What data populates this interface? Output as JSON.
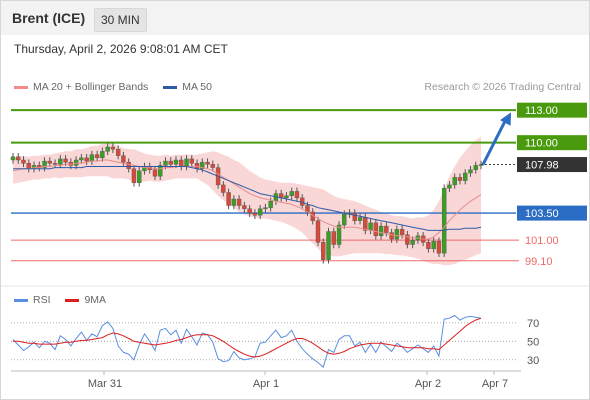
{
  "header": {
    "instrument": "Brent (ICE)",
    "timeframe": "30 MIN"
  },
  "datetime": "Thursday, April 2, 2026 9:08:01 AM CET",
  "legend": {
    "ma20_bb": "MA 20 + Bollinger Bands",
    "ma50": "MA 50",
    "rsi": "RSI",
    "rsi_ma": "9MA"
  },
  "copyright": "Research © 2026 Trading Central",
  "colors": {
    "up_level": "#4a9a0e",
    "pivot": "#2b6cc4",
    "down_level": "#ee6a6a",
    "last_price": "#333333",
    "ma50": "#2f5aa8",
    "bb": "#f7c9c9",
    "rsi": "#5b8fe0",
    "rsi_ma": "#dd1f1f",
    "arrow": "#2b6cc4"
  },
  "chart_data": [
    {
      "type": "candlestick",
      "title": "",
      "x_labels": [
        "Mar 31",
        "Apr 1",
        "Apr 2",
        "Apr 7"
      ],
      "ylim": [
        97.6,
        114.4
      ],
      "levels": [
        {
          "value": 113.0,
          "label": "113.00",
          "kind": "resistance"
        },
        {
          "value": 110.0,
          "label": "110.00",
          "kind": "resistance"
        },
        {
          "value": 103.5,
          "label": "103.50",
          "kind": "pivot"
        },
        {
          "value": 101.0,
          "label": "101.00",
          "kind": "support"
        },
        {
          "value": 99.1,
          "label": "99.10",
          "kind": "support"
        }
      ],
      "last_price": {
        "value": 107.98,
        "label": "107.98"
      },
      "close_series": [
        108.7,
        108.4,
        108.1,
        107.6,
        107.9,
        107.7,
        108.3,
        108.1,
        108.0,
        108.5,
        108.2,
        107.9,
        108.4,
        108.6,
        108.3,
        108.9,
        108.6,
        109.2,
        109.6,
        109.4,
        108.8,
        108.2,
        107.6,
        106.3,
        107.4,
        107.8,
        107.5,
        106.9,
        107.9,
        108.3,
        108.0,
        108.4,
        107.8,
        108.5,
        108.1,
        107.6,
        108.2,
        108.0,
        107.7,
        106.1,
        105.4,
        104.2,
        104.8,
        104.2,
        103.9,
        103.5,
        103.3,
        103.9,
        104.0,
        104.6,
        105.3,
        104.9,
        105.1,
        105.5,
        104.9,
        104.2,
        103.6,
        102.8,
        100.8,
        99.2,
        101.8,
        100.6,
        102.4,
        103.4,
        103.5,
        102.8,
        103.1,
        101.9,
        102.6,
        101.4,
        102.3,
        101.7,
        101.1,
        102.0,
        101.5,
        100.6,
        101.0,
        101.4,
        100.8,
        100.2,
        100.9,
        99.8,
        105.8,
        106.1,
        106.8,
        106.5,
        107.2,
        107.5,
        107.9,
        107.98
      ],
      "ma20": [
        107.4,
        107.5,
        107.6,
        107.6,
        107.7,
        107.7,
        107.8,
        107.8,
        107.9,
        107.9,
        108.0,
        108.0,
        108.1,
        108.1,
        108.2,
        108.3,
        108.3,
        108.4,
        108.4,
        108.3,
        108.2,
        108.1,
        108.0,
        107.9,
        107.8,
        107.7,
        107.7,
        107.6,
        107.6,
        107.7,
        107.7,
        107.8,
        107.8,
        107.8,
        107.8,
        107.8,
        107.7,
        107.6,
        107.4,
        107.1,
        106.8,
        106.5,
        106.2,
        105.9,
        105.6,
        105.3,
        105.1,
        104.9,
        104.8,
        104.7,
        104.6,
        104.5,
        104.4,
        104.3,
        104.1,
        103.9,
        103.6,
        103.3,
        103.0,
        102.7,
        102.5,
        102.3,
        102.2,
        102.2,
        102.2,
        102.2,
        102.1,
        102.0,
        101.9,
        101.8,
        101.7,
        101.6,
        101.5,
        101.4,
        101.4,
        101.3,
        101.2,
        101.2,
        101.1,
        101.1,
        101.3,
        101.7,
        102.2,
        102.8,
        103.3,
        103.8,
        104.2,
        104.6,
        104.9,
        105.2
      ],
      "bb_width": [
        1.2,
        1.2,
        1.2,
        1.1,
        1.1,
        1.1,
        1.1,
        1.1,
        1.1,
        1.2,
        1.2,
        1.2,
        1.3,
        1.3,
        1.3,
        1.4,
        1.4,
        1.5,
        1.5,
        1.6,
        1.5,
        1.4,
        1.4,
        1.5,
        1.4,
        1.3,
        1.2,
        1.2,
        1.2,
        1.2,
        1.1,
        1.1,
        1.1,
        1.1,
        1.1,
        1.1,
        1.3,
        1.5,
        1.8,
        2.0,
        2.1,
        2.2,
        2.2,
        2.3,
        2.2,
        2.1,
        2.0,
        1.9,
        1.8,
        1.8,
        1.8,
        1.8,
        1.9,
        2.0,
        2.1,
        2.2,
        2.4,
        2.6,
        2.8,
        3.0,
        2.9,
        2.8,
        2.7,
        2.6,
        2.5,
        2.4,
        2.3,
        2.2,
        2.1,
        2.0,
        1.9,
        1.9,
        1.8,
        1.8,
        1.8,
        1.8,
        1.8,
        1.9,
        2.0,
        2.2,
        2.5,
        2.9,
        3.5,
        4.1,
        4.5,
        4.8,
        5.0,
        5.2,
        5.3,
        5.4
      ],
      "ma50": [
        107.6,
        107.6,
        107.6,
        107.6,
        107.6,
        107.6,
        107.6,
        107.6,
        107.7,
        107.7,
        107.7,
        107.7,
        107.7,
        107.7,
        107.8,
        107.8,
        107.8,
        107.8,
        107.8,
        107.8,
        107.8,
        107.8,
        107.8,
        107.8,
        107.8,
        107.8,
        107.8,
        107.8,
        107.8,
        107.8,
        107.8,
        107.8,
        107.8,
        107.8,
        107.7,
        107.6,
        107.5,
        107.3,
        107.1,
        106.9,
        106.7,
        106.5,
        106.3,
        106.1,
        105.9,
        105.7,
        105.5,
        105.3,
        105.2,
        105.1,
        105.0,
        104.9,
        104.8,
        104.7,
        104.6,
        104.5,
        104.3,
        104.2,
        104.0,
        103.9,
        103.8,
        103.7,
        103.6,
        103.5,
        103.4,
        103.3,
        103.2,
        103.1,
        103.0,
        102.9,
        102.8,
        102.7,
        102.6,
        102.5,
        102.4,
        102.3,
        102.2,
        102.1,
        102.0,
        101.9,
        101.9,
        101.9,
        101.9,
        102.0,
        102.0,
        102.0,
        102.1,
        102.1,
        102.1,
        102.2
      ],
      "projection": {
        "from": 107.98,
        "to": 112.8
      }
    },
    {
      "type": "line",
      "title": "RSI",
      "ylim": [
        20,
        85
      ],
      "y_ticks": [
        70,
        50,
        30
      ],
      "rsi": [
        52,
        46,
        40,
        44,
        49,
        43,
        50,
        48,
        41,
        56,
        52,
        45,
        53,
        60,
        51,
        58,
        55,
        67,
        71,
        64,
        45,
        38,
        36,
        30,
        46,
        58,
        50,
        40,
        62,
        64,
        57,
        62,
        48,
        63,
        55,
        46,
        59,
        57,
        49,
        31,
        28,
        29,
        39,
        32,
        30,
        31,
        33,
        48,
        49,
        56,
        62,
        54,
        56,
        62,
        50,
        42,
        36,
        31,
        27,
        22,
        41,
        38,
        52,
        56,
        56,
        45,
        49,
        38,
        47,
        38,
        49,
        44,
        39,
        48,
        44,
        38,
        42,
        46,
        42,
        38,
        45,
        34,
        74,
        75,
        78,
        73,
        76,
        77,
        76,
        75
      ],
      "rsi_ma": [
        50,
        50,
        49,
        48,
        48,
        47,
        47,
        47,
        47,
        48,
        49,
        49,
        50,
        51,
        51,
        52,
        53,
        54,
        57,
        59,
        58,
        56,
        53,
        50,
        49,
        48,
        47,
        46,
        47,
        48,
        49,
        51,
        52,
        54,
        56,
        57,
        57,
        57,
        56,
        53,
        50,
        46,
        42,
        39,
        36,
        34,
        33,
        34,
        36,
        39,
        42,
        45,
        48,
        51,
        53,
        53,
        51,
        48,
        44,
        40,
        37,
        36,
        37,
        39,
        42,
        44,
        46,
        47,
        48,
        48,
        48,
        47,
        46,
        45,
        44,
        43,
        43,
        43,
        43,
        42,
        42,
        41,
        46,
        51,
        56,
        61,
        66,
        70,
        73,
        75
      ]
    }
  ]
}
